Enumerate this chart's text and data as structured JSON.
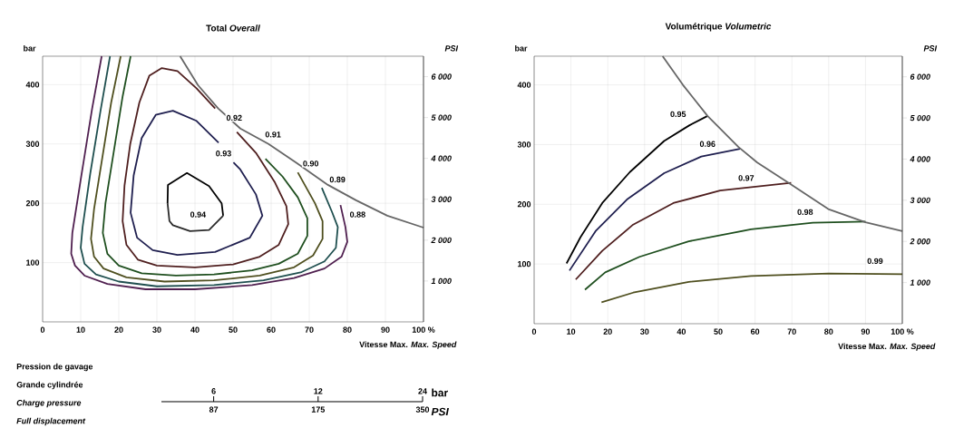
{
  "chart_data": [
    {
      "type": "line",
      "title": "Total *Overall*",
      "xlabel": "Vitesse Max.   *Max. Speed*",
      "ylabel": "bar",
      "y2label": "PSI",
      "xlim": [
        0,
        100
      ],
      "xticks": [
        0,
        10,
        20,
        30,
        40,
        50,
        60,
        70,
        80,
        90,
        {
          "value": 100,
          "label": "100 %"
        }
      ],
      "ylim": [
        0,
        448
      ],
      "yticks": [
        100,
        200,
        300,
        400
      ],
      "y2lim": [
        0,
        6500
      ],
      "y2ticks": [
        {
          "value": 1000,
          "label": "1 000"
        },
        {
          "value": 2000,
          "label": "2 000"
        },
        {
          "value": 3000,
          "label": "3 000"
        },
        {
          "value": 4000,
          "label": "4 000"
        },
        {
          "value": 5000,
          "label": "5 000"
        },
        {
          "value": 6000,
          "label": "6 000"
        }
      ],
      "grid": true,
      "series": [
        {
          "color": "#000000",
          "x": [
            32.8,
            32.9,
            37.9,
            43.7,
            47.0,
            47.4
          ],
          "values": [
            200,
            231,
            251,
            229,
            200,
            179
          ]
        },
        {
          "color": "#2a2a2a",
          "x": [
            32.8,
            33.3,
            34.2,
            38.7,
            43.7,
            47.4
          ],
          "values": [
            200,
            170,
            163,
            153,
            155,
            179
          ]
        },
        {
          "color": "#1f1f4f",
          "x": [
            46.2,
            40.4,
            34.2,
            29.7,
            26.0,
            23.9,
            23.1,
            24.8,
            28.9,
            35.4,
            45.3,
            54.4,
            57.7,
            56.0,
            51.9,
            50.1
          ],
          "values": [
            302,
            339,
            356,
            349,
            310,
            247,
            184,
            142,
            121,
            113,
            118,
            142,
            179,
            215,
            257,
            269
          ]
        },
        {
          "color": "#4f1f1f",
          "x": [
            45.3,
            40.4,
            35.4,
            31.3,
            28.0,
            25.4,
            23.0,
            21.5,
            21.0,
            22.0,
            25.0,
            30.0,
            40.0,
            50.0,
            57.0,
            62.0,
            64.5,
            64.0,
            61.0,
            56.0,
            51.0
          ],
          "values": [
            360,
            394,
            423,
            428,
            415,
            370,
            300,
            230,
            170,
            130,
            105,
            95,
            92,
            97,
            110,
            130,
            165,
            195,
            235,
            285,
            320
          ]
        },
        {
          "color": "#1f4f1f",
          "x": [
            23.1,
            21.0,
            18.5,
            16.5,
            15.8,
            17.0,
            20.0,
            26.0,
            35.0,
            45.0,
            55.0,
            62.0,
            67.0,
            69.5,
            69.5,
            67.0,
            63.0,
            58.5
          ],
          "values": [
            448,
            380,
            280,
            200,
            150,
            115,
            95,
            82,
            78,
            80,
            87,
            98,
            115,
            145,
            175,
            210,
            245,
            275
          ]
        },
        {
          "color": "#4f4f1f",
          "x": [
            20.5,
            18.0,
            15.5,
            13.5,
            12.7,
            13.5,
            16.0,
            22.0,
            32.0,
            45.0,
            57.0,
            66.0,
            71.0,
            73.5,
            73.5,
            71.5,
            67.0
          ],
          "values": [
            448,
            370,
            270,
            190,
            140,
            110,
            90,
            75,
            68,
            70,
            78,
            92,
            112,
            140,
            170,
            200,
            252
          ]
        },
        {
          "color": "#1f4f4f",
          "x": [
            17.7,
            15.3,
            12.5,
            10.5,
            10.0,
            11.0,
            14.0,
            20.0,
            30.0,
            45.0,
            58.0,
            68.0,
            74.0,
            77.0,
            77.5,
            76.0,
            73.3
          ],
          "values": [
            448,
            360,
            250,
            160,
            125,
            98,
            80,
            68,
            60,
            62,
            70,
            84,
            102,
            125,
            160,
            185,
            226
          ]
        },
        {
          "color": "#4f1f4f",
          "x": [
            15.5,
            13.0,
            10.0,
            7.8,
            7.5,
            8.5,
            11.0,
            17.0,
            27.0,
            40.0,
            55.0,
            66.0,
            74.0,
            78.5,
            80.0,
            79.5,
            78.2
          ],
          "values": [
            448,
            360,
            240,
            150,
            115,
            95,
            78,
            64,
            55,
            55,
            62,
            74,
            90,
            110,
            135,
            160,
            197
          ]
        },
        {
          "color": "#666666",
          "x": [
            36.1,
            40.8,
            46.1,
            51.9,
            59.3,
            66.7,
            74.9,
            82.3,
            90.5,
            100
          ],
          "values": [
            448,
            399,
            360,
            326,
            300,
            268,
            231,
            205,
            179,
            159
          ]
        }
      ],
      "annotations": [
        {
          "text": "0.94",
          "x": 40.8,
          "y": 181
        },
        {
          "text": "0.93",
          "x": 47.5,
          "y": 284
        },
        {
          "text": "0.92",
          "x": 50.3,
          "y": 344
        },
        {
          "text": "0.91",
          "x": 60.5,
          "y": 316
        },
        {
          "text": "0.90",
          "x": 70.4,
          "y": 267
        },
        {
          "text": "0.89",
          "x": 77.4,
          "y": 240
        },
        {
          "text": "0.88",
          "x": 82.7,
          "y": 181
        }
      ]
    },
    {
      "type": "line",
      "title": "Volumétrique   *Volumetric*",
      "xlabel": "Vitesse Max.   *Max. Speed*",
      "ylabel": "bar",
      "y2label": "PSI",
      "xlim": [
        0,
        100
      ],
      "xticks": [
        0,
        10,
        20,
        30,
        40,
        50,
        60,
        70,
        80,
        90,
        {
          "value": 100,
          "label": "100 %"
        }
      ],
      "ylim": [
        0,
        448
      ],
      "yticks": [
        100,
        200,
        300,
        400
      ],
      "y2lim": [
        0,
        6500
      ],
      "y2ticks": [
        {
          "value": 1000,
          "label": "1 000"
        },
        {
          "value": 2000,
          "label": "2 000"
        },
        {
          "value": 3000,
          "label": "3 000"
        },
        {
          "value": 4000,
          "label": "4 000"
        },
        {
          "value": 5000,
          "label": "5 000"
        },
        {
          "value": 6000,
          "label": "6 000"
        }
      ],
      "grid": true,
      "series": [
        {
          "color": "#000000",
          "x": [
            8.8,
            12.6,
            18.5,
            26.0,
            35.3,
            42.1,
            47.1
          ],
          "values": [
            101,
            145,
            202,
            254,
            306,
            332,
            348
          ]
        },
        {
          "color": "#1f1f4f",
          "x": [
            9.6,
            16.8,
            25.2,
            35.3,
            45.4,
            55.9
          ],
          "values": [
            89,
            156,
            208,
            252,
            280,
            293
          ]
        },
        {
          "color": "#4f1f1f",
          "x": [
            11.3,
            18.5,
            26.9,
            37.8,
            50.5,
            69.8
          ],
          "values": [
            74,
            122,
            166,
            202,
            223,
            236
          ]
        },
        {
          "color": "#1f4f1f",
          "x": [
            13.8,
            19.3,
            28.6,
            42.0,
            58.9,
            75.7,
            90.0
          ],
          "values": [
            57,
            86,
            112,
            138,
            158,
            169,
            171
          ]
        },
        {
          "color": "#4f4f1f",
          "x": [
            18.3,
            26.9,
            42.0,
            58.9,
            80.0,
            100
          ],
          "values": [
            36,
            52,
            70,
            80,
            84,
            83
          ]
        },
        {
          "color": "#666666",
          "x": [
            34.9,
            40.4,
            47.1,
            55.5,
            60.6,
            69.8,
            79.9,
            90.0,
            100
          ],
          "values": [
            448,
            400,
            348,
            296,
            270,
            233,
            192,
            170,
            155
          ]
        }
      ],
      "annotations": [
        {
          "text": "0.95",
          "x": 39.1,
          "y": 351
        },
        {
          "text": "0.96",
          "x": 47.1,
          "y": 301
        },
        {
          "text": "0.97",
          "x": 57.6,
          "y": 244
        },
        {
          "text": "0.98",
          "x": 73.6,
          "y": 187
        },
        {
          "text": "0.99",
          "x": 92.6,
          "y": 105
        }
      ]
    },
    {
      "type": "other",
      "annotations": [
        "Pression de gavage",
        "Grande cylindrée",
        "*Charge pressure*",
        "*Full displacement*",
        "6",
        "12",
        "24",
        "bar",
        "87",
        "175",
        "350",
        "*PSI*"
      ]
    }
  ]
}
